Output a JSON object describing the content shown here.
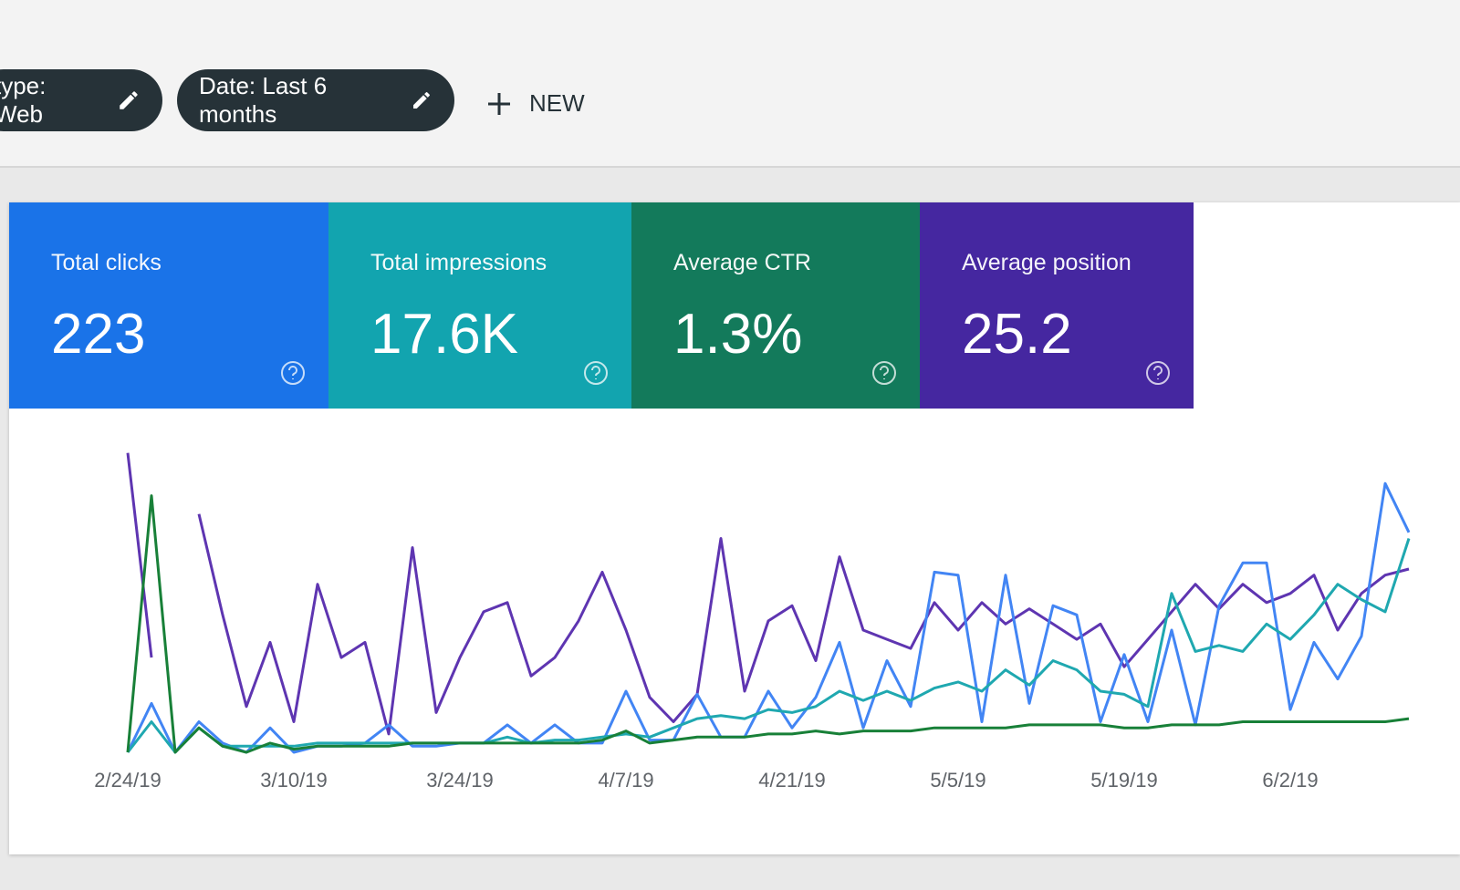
{
  "filters": [
    "type: Web",
    "Date: Last 6 months"
  ],
  "new_button": "NEW",
  "cards": [
    {
      "label": "Total clicks",
      "value": "223",
      "color": "#1a73e8"
    },
    {
      "label": "Total impressions",
      "value": "17.6K",
      "color": "#12a4af"
    },
    {
      "label": "Average CTR",
      "value": "1.3%",
      "color": "#137a5b"
    },
    {
      "label": "Average position",
      "value": "25.2",
      "color": "#4527a0"
    }
  ],
  "chart_data": {
    "type": "line",
    "categories": [
      "2/24/19",
      null,
      null,
      null,
      null,
      null,
      null,
      "3/10/19",
      null,
      null,
      null,
      null,
      null,
      null,
      "3/24/19",
      null,
      null,
      null,
      null,
      null,
      null,
      "4/7/19",
      null,
      null,
      null,
      null,
      null,
      null,
      "4/21/19",
      null,
      null,
      null,
      null,
      null,
      null,
      "5/5/19",
      null,
      null,
      null,
      null,
      null,
      null,
      "5/19/19",
      null,
      null,
      null,
      null,
      null,
      null,
      "6/2/19",
      null,
      null,
      null,
      null,
      null
    ],
    "ylim": [
      0,
      100
    ],
    "series": [
      {
        "color": "#5e35b1",
        "values": [
          98,
          31,
          null,
          78,
          45,
          15,
          36,
          10,
          55,
          31,
          36,
          6,
          67,
          13,
          31,
          46,
          49,
          25,
          31,
          43,
          59,
          40,
          18,
          10,
          19,
          70,
          20,
          43,
          48,
          30,
          64,
          40,
          37,
          34,
          49,
          40,
          49,
          42,
          47,
          42,
          37,
          42,
          28,
          37,
          46,
          55,
          47,
          55,
          49,
          52,
          58,
          40,
          52,
          58,
          60
        ]
      },
      {
        "color": "#4285f4",
        "values": [
          0,
          16,
          0,
          10,
          3,
          0,
          8,
          0,
          2,
          2,
          3,
          9,
          2,
          2,
          3,
          3,
          9,
          3,
          9,
          3,
          3,
          20,
          4,
          4,
          19,
          5,
          5,
          20,
          8,
          18,
          36,
          8,
          30,
          15,
          59,
          58,
          10,
          58,
          16,
          48,
          45,
          10,
          32,
          10,
          40,
          9,
          48,
          62,
          62,
          14,
          36,
          24,
          38,
          88,
          72
        ]
      },
      {
        "color": "#1fa8b0",
        "values": [
          0,
          10,
          0,
          8,
          2,
          2,
          2,
          2,
          3,
          3,
          3,
          3,
          3,
          3,
          3,
          3,
          5,
          3,
          4,
          4,
          5,
          6,
          5,
          8,
          11,
          12,
          11,
          14,
          13,
          15,
          20,
          17,
          20,
          17,
          21,
          23,
          20,
          27,
          22,
          30,
          27,
          20,
          19,
          15,
          52,
          33,
          35,
          33,
          42,
          37,
          45,
          55,
          50,
          46,
          70
        ]
      },
      {
        "color": "#188038",
        "values": [
          0,
          84,
          0,
          8,
          2,
          0,
          3,
          1,
          2,
          2,
          2,
          2,
          3,
          3,
          3,
          3,
          3,
          3,
          3,
          3,
          4,
          7,
          3,
          4,
          5,
          5,
          5,
          6,
          6,
          7,
          6,
          7,
          7,
          7,
          8,
          8,
          8,
          8,
          9,
          9,
          9,
          9,
          8,
          8,
          9,
          9,
          9,
          10,
          10,
          10,
          10,
          10,
          10,
          10,
          11
        ]
      }
    ]
  }
}
